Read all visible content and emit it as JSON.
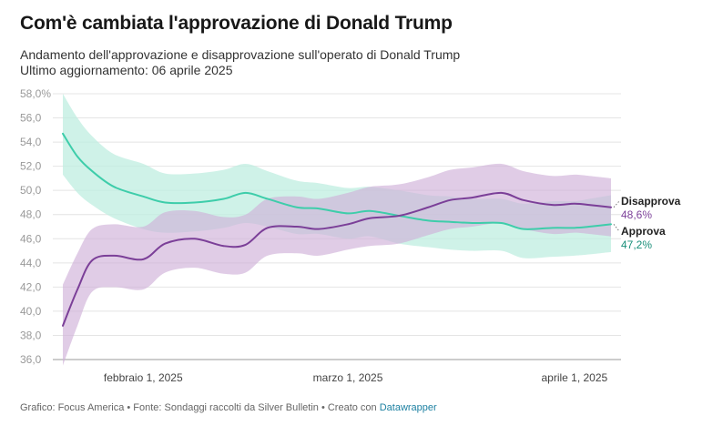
{
  "title": "Com'è cambiata l'approvazione di Donald Trump",
  "subtitle_line1": "Andamento dell'approvazione e disapprovazione sull'operato di Donald Trump",
  "subtitle_line2": "Ultimo aggiornamento: 06 aprile 2025",
  "footer": {
    "text": "Grafico: Focus America • Fonte: Sondaggi raccolti da Silver Bulletin • Creato con ",
    "link": "Datawrapper"
  },
  "colors": {
    "approve_line": "#3ecdaa",
    "approve_band": "#bfeee0",
    "disapprove_line": "#7b3f98",
    "disapprove_band": "#cfb0d9",
    "approve_label": "#1a8f7a",
    "disapprove_label": "#7b3f98",
    "grid": "#e4e4e4"
  },
  "chart_data": {
    "type": "line",
    "x_axis": {
      "ticks": [
        {
          "date": "2025-02-01",
          "label": "febbraio 1, 2025"
        },
        {
          "date": "2025-03-01",
          "label": "marzo 1, 2025"
        },
        {
          "date": "2025-04-01",
          "label": "aprile 1, 2025"
        }
      ],
      "range": [
        "2025-01-21",
        "2025-04-06"
      ]
    },
    "y_axis": {
      "range": [
        36,
        58
      ],
      "ticks": [
        36,
        38,
        40,
        42,
        44,
        46,
        48,
        50,
        52,
        54,
        56,
        58
      ],
      "tick_labels": [
        "36,0",
        "38,0",
        "40,0",
        "42,0",
        "44,0",
        "46,0",
        "48,0",
        "50,0",
        "52,0",
        "54,0",
        "56,0",
        "58,0%"
      ]
    },
    "grid": true,
    "series": [
      {
        "name": "Approva",
        "end_label": "47,2%",
        "x": [
          "2025-01-21",
          "2025-01-23",
          "2025-01-25",
          "2025-01-28",
          "2025-02-01",
          "2025-02-04",
          "2025-02-08",
          "2025-02-12",
          "2025-02-15",
          "2025-02-18",
          "2025-02-22",
          "2025-02-25",
          "2025-03-01",
          "2025-03-04",
          "2025-03-08",
          "2025-03-12",
          "2025-03-15",
          "2025-03-18",
          "2025-03-22",
          "2025-03-25",
          "2025-03-29",
          "2025-04-01",
          "2025-04-03",
          "2025-04-06"
        ],
        "values": [
          54.7,
          52.8,
          51.6,
          50.3,
          49.5,
          49.0,
          49.0,
          49.3,
          49.8,
          49.3,
          48.6,
          48.5,
          48.1,
          48.3,
          47.9,
          47.5,
          47.4,
          47.3,
          47.3,
          46.8,
          46.9,
          46.9,
          47.0,
          47.2
        ],
        "upper": [
          58.0,
          56.0,
          54.5,
          53.0,
          52.2,
          51.4,
          51.4,
          51.7,
          52.2,
          51.6,
          50.8,
          50.6,
          50.2,
          50.3,
          50.0,
          49.6,
          49.5,
          49.3,
          49.3,
          48.9,
          49.1,
          49.1,
          49.3,
          49.6
        ],
        "lower": [
          51.3,
          49.8,
          48.8,
          47.7,
          46.8,
          46.5,
          46.6,
          46.9,
          47.3,
          47.0,
          46.4,
          46.4,
          46.0,
          46.2,
          45.6,
          45.3,
          45.1,
          45.0,
          45.0,
          44.4,
          44.5,
          44.6,
          44.7,
          44.9
        ]
      },
      {
        "name": "Disapprova",
        "end_label": "48,6%",
        "x": [
          "2025-01-21",
          "2025-01-23",
          "2025-01-25",
          "2025-01-28",
          "2025-02-01",
          "2025-02-04",
          "2025-02-08",
          "2025-02-12",
          "2025-02-15",
          "2025-02-18",
          "2025-02-22",
          "2025-02-25",
          "2025-03-01",
          "2025-03-04",
          "2025-03-08",
          "2025-03-12",
          "2025-03-15",
          "2025-03-18",
          "2025-03-22",
          "2025-03-25",
          "2025-03-29",
          "2025-04-01",
          "2025-04-03",
          "2025-04-06"
        ],
        "values": [
          38.8,
          41.8,
          44.2,
          44.6,
          44.3,
          45.6,
          46.0,
          45.4,
          45.5,
          46.9,
          47.0,
          46.8,
          47.2,
          47.7,
          47.9,
          48.6,
          49.2,
          49.4,
          49.8,
          49.2,
          48.8,
          48.9,
          48.8,
          48.6
        ],
        "upper": [
          42.2,
          44.8,
          46.8,
          47.2,
          47.0,
          48.2,
          48.3,
          47.8,
          48.0,
          49.3,
          49.5,
          49.3,
          49.8,
          50.3,
          50.5,
          51.1,
          51.7,
          51.9,
          52.2,
          51.6,
          51.2,
          51.3,
          51.2,
          51.0
        ],
        "lower": [
          35.5,
          38.8,
          41.6,
          42.0,
          41.8,
          43.2,
          43.6,
          43.1,
          43.2,
          44.6,
          44.8,
          44.6,
          45.1,
          45.4,
          45.6,
          46.3,
          46.8,
          47.0,
          47.3,
          46.8,
          46.4,
          46.5,
          46.4,
          46.2
        ]
      }
    ]
  }
}
